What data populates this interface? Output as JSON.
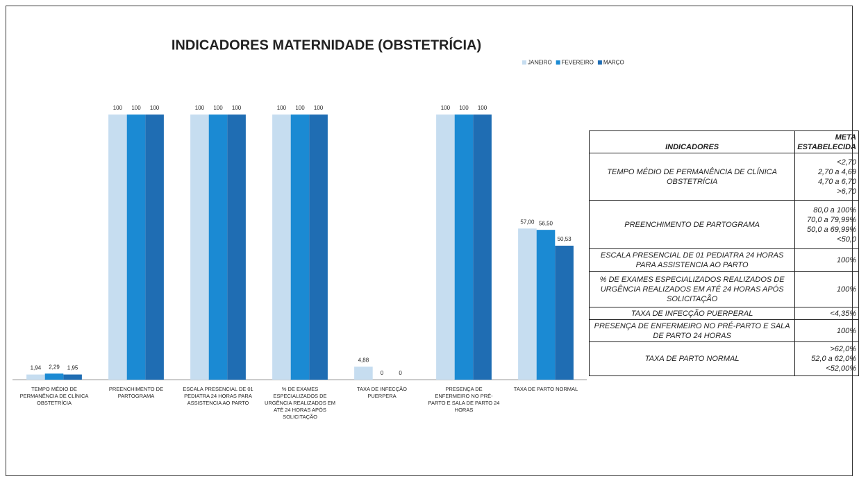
{
  "chart_data": {
    "type": "bar",
    "title": "INDICADORES MATERNIDADE (OBSTETRÍCIA)",
    "categories": [
      "TEMPO MÉDIO DE PERMANÊNCIA DE CLÍNICA OBSTETRÍCIA",
      "PREENCHIMENTO DE PARTOGRAMA",
      "ESCALA PRESENCIAL DE 01 PEDIATRA 24 HORAS PARA ASSISTENCIA AO PARTO",
      "% DE EXAMES ESPECIALIZADOS DE URGÊNCIA REALIZADOS EM ATÉ 24 HORAS APÓS SOLICITAÇÃO",
      "TAXA DE INFECÇÃO PUERPERA",
      "PRESENÇA DE ENFERMEIRO NO PRÉ-PARTO E SALA DE PARTO 24 HORAS",
      "TAXA DE PARTO NORMAL"
    ],
    "series": [
      {
        "name": "JANEIRO",
        "color": "#c6ddf0",
        "values": [
          1.94,
          100,
          100,
          100,
          4.88,
          100,
          57.0
        ],
        "value_labels": [
          "1,94",
          "100",
          "100",
          "100",
          "4,88",
          "100",
          "57,00"
        ]
      },
      {
        "name": "FEVEREIRO",
        "color": "#1b8ad3",
        "values": [
          2.29,
          100,
          100,
          100,
          0,
          100,
          56.5
        ],
        "value_labels": [
          "2,29",
          "100",
          "100",
          "100",
          "0",
          "100",
          "56,50"
        ]
      },
      {
        "name": "MARÇO",
        "color": "#1f6db3",
        "values": [
          1.95,
          100,
          100,
          100,
          0,
          100,
          50.53
        ],
        "value_labels": [
          "1,95",
          "100",
          "100",
          "100",
          "0",
          "100",
          "50,53"
        ]
      }
    ],
    "ylim": [
      0,
      100
    ],
    "legend": "top-right"
  },
  "table": {
    "header": [
      "INDICADORES",
      "META ESTABELECIDA"
    ],
    "rows": [
      {
        "indicator": "TEMPO MÉDIO DE PERMANÊNCIA DE CLÍNICA OBSTETRÍCIA",
        "meta": [
          "<2,70",
          "2,70 a 4,69",
          "4,70 a 6,70",
          ">6,70"
        ]
      },
      {
        "indicator": "PREENCHIMENTO DE PARTOGRAMA",
        "meta": [
          "80,0 a 100%",
          "70,0 a 79,99%",
          "50,0 a 69,99%",
          "<50,0"
        ]
      },
      {
        "indicator": "ESCALA PRESENCIAL DE 01 PEDIATRA 24 HORAS PARA ASSISTENCIA AO PARTO",
        "meta": [
          "100%"
        ]
      },
      {
        "indicator": "% DE EXAMES ESPECIALIZADOS REALIZADOS DE URGÊNCIA REALIZADOS EM ATÉ 24 HORAS APÓS SOLICITAÇÃO",
        "meta": [
          "100%"
        ]
      },
      {
        "indicator": "TAXA DE INFECÇÃO PUERPERAL",
        "meta": [
          "<4,35%"
        ]
      },
      {
        "indicator": "PRESENÇA DE ENFERMEIRO NO PRÉ-PARTO E SALA DE PARTO 24 HORAS",
        "meta": [
          "100%"
        ]
      },
      {
        "indicator": "TAXA DE PARTO NORMAL",
        "meta": [
          ">62,0%",
          "52,0 a 62,0%",
          "<52,00%"
        ]
      }
    ]
  }
}
